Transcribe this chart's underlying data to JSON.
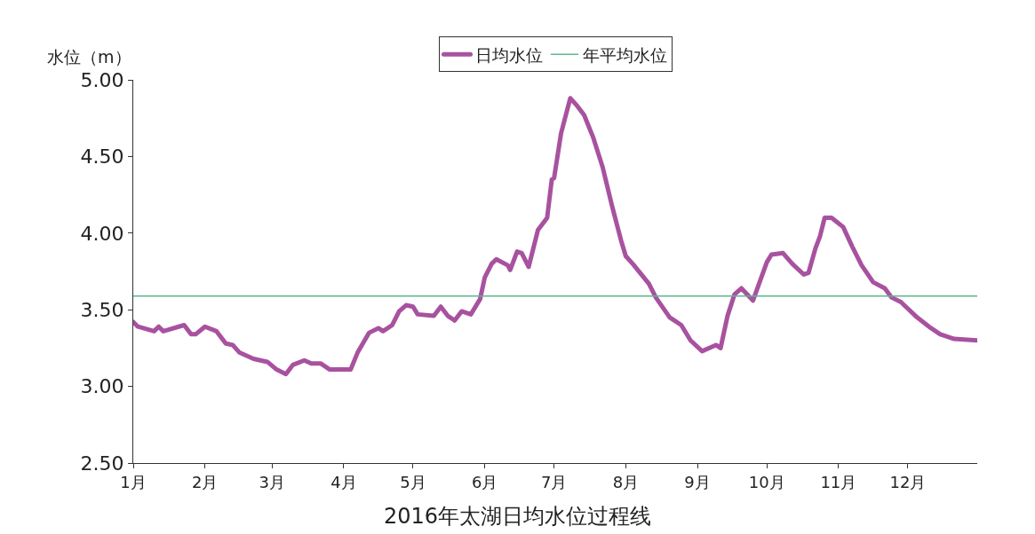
{
  "chart_data": {
    "type": "line",
    "title": "2016年太湖日均水位过程线",
    "ylabel": "水位（m）",
    "x": [
      "2016-01-01",
      "2016-01-03",
      "2016-01-10",
      "2016-01-12",
      "2016-01-14",
      "2016-01-23",
      "2016-01-26",
      "2016-01-28",
      "2016-02-01",
      "2016-02-06",
      "2016-02-10",
      "2016-02-13",
      "2016-02-16",
      "2016-02-22",
      "2016-02-28",
      "2016-03-03",
      "2016-03-07",
      "2016-03-10",
      "2016-03-15",
      "2016-03-18",
      "2016-03-22",
      "2016-03-26",
      "2016-04-04",
      "2016-04-07",
      "2016-04-12",
      "2016-04-16",
      "2016-04-18",
      "2016-04-22",
      "2016-04-25",
      "2016-04-28",
      "2016-05-01",
      "2016-05-03",
      "2016-05-10",
      "2016-05-13",
      "2016-05-16",
      "2016-05-19",
      "2016-05-22",
      "2016-05-26",
      "2016-05-30",
      "2016-06-01",
      "2016-06-04",
      "2016-06-06",
      "2016-06-11",
      "2016-06-12",
      "2016-06-15",
      "2016-06-17",
      "2016-06-20",
      "2016-06-24",
      "2016-06-28",
      "2016-06-30",
      "2016-07-01",
      "2016-07-04",
      "2016-07-08",
      "2016-07-11",
      "2016-07-14",
      "2016-07-18",
      "2016-07-22",
      "2016-07-26",
      "2016-07-30",
      "2016-08-01",
      "2016-08-04",
      "2016-08-11",
      "2016-08-14",
      "2016-08-20",
      "2016-08-25",
      "2016-08-29",
      "2016-09-03",
      "2016-09-09",
      "2016-09-11",
      "2016-09-14",
      "2016-09-17",
      "2016-09-20",
      "2016-09-25",
      "2016-10-01",
      "2016-10-03",
      "2016-10-08",
      "2016-10-12",
      "2016-10-17",
      "2016-10-19",
      "2016-10-22",
      "2016-10-24",
      "2016-10-26",
      "2016-10-29",
      "2016-11-03",
      "2016-11-07",
      "2016-11-11",
      "2016-11-16",
      "2016-11-21",
      "2016-11-24",
      "2016-11-28",
      "2016-12-05",
      "2016-12-11",
      "2016-12-15",
      "2016-12-21",
      "2016-12-31"
    ],
    "series": [
      {
        "name": "日均水位",
        "color": "#a8529f",
        "values": [
          3.42,
          3.39,
          3.36,
          3.39,
          3.36,
          3.4,
          3.34,
          3.34,
          3.39,
          3.36,
          3.28,
          3.27,
          3.22,
          3.18,
          3.16,
          3.11,
          3.08,
          3.14,
          3.17,
          3.15,
          3.15,
          3.11,
          3.11,
          3.22,
          3.35,
          3.38,
          3.36,
          3.4,
          3.49,
          3.53,
          3.52,
          3.47,
          3.46,
          3.52,
          3.46,
          3.43,
          3.49,
          3.47,
          3.57,
          3.71,
          3.8,
          3.83,
          3.79,
          3.76,
          3.88,
          3.87,
          3.78,
          4.02,
          4.1,
          4.35,
          4.36,
          4.65,
          4.88,
          4.83,
          4.77,
          4.62,
          4.43,
          4.18,
          3.95,
          3.85,
          3.8,
          3.67,
          3.58,
          3.45,
          3.4,
          3.3,
          3.23,
          3.27,
          3.25,
          3.46,
          3.6,
          3.64,
          3.56,
          3.81,
          3.86,
          3.87,
          3.8,
          3.73,
          3.74,
          3.9,
          3.98,
          4.1,
          4.1,
          4.04,
          3.91,
          3.79,
          3.68,
          3.64,
          3.58,
          3.55,
          3.45,
          3.38,
          3.34,
          3.31,
          3.3
        ]
      }
    ],
    "ref_lines": [
      {
        "axis": "y",
        "value": 3.59,
        "label": "年平均水位",
        "color": "#5cb88c"
      }
    ],
    "xlim": [
      "2016-01-01",
      "2016-12-31"
    ],
    "xticks": [
      {
        "value": "2016-01-01",
        "label": "1月"
      },
      {
        "value": "2016-02-01",
        "label": "2月"
      },
      {
        "value": "2016-03-01",
        "label": "3月"
      },
      {
        "value": "2016-04-01",
        "label": "4月"
      },
      {
        "value": "2016-05-01",
        "label": "5月"
      },
      {
        "value": "2016-06-01",
        "label": "6月"
      },
      {
        "value": "2016-07-01",
        "label": "7月"
      },
      {
        "value": "2016-08-01",
        "label": "8月"
      },
      {
        "value": "2016-09-01",
        "label": "9月"
      },
      {
        "value": "2016-10-01",
        "label": "10月"
      },
      {
        "value": "2016-11-01",
        "label": "11月"
      },
      {
        "value": "2016-12-01",
        "label": "12月"
      }
    ],
    "ylim": [
      2.5,
      5.0
    ],
    "yticks": [
      {
        "value": 2.5,
        "label": "2.50"
      },
      {
        "value": 3.0,
        "label": "3.00"
      },
      {
        "value": 3.5,
        "label": "3.50"
      },
      {
        "value": 4.0,
        "label": "4.00"
      },
      {
        "value": 4.5,
        "label": "4.50"
      },
      {
        "value": 5.0,
        "label": "5.00"
      }
    ],
    "legend": "top",
    "marker": "none",
    "line_style": "solid"
  }
}
